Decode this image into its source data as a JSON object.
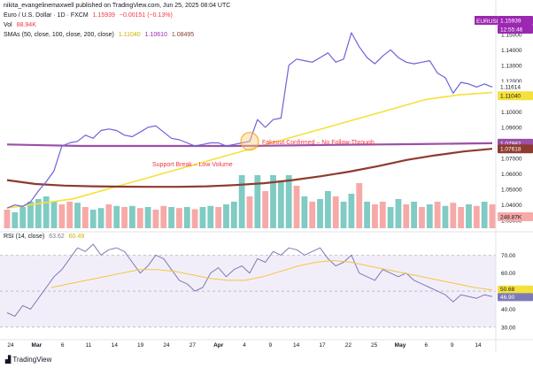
{
  "header": {
    "publisher": "nikita_evangelinemaxwell published on TradingView.com, Jun 25, 2025 08:04 UTC",
    "symbol_line": "Euro / U.S. Dollar · 1D · FXCM",
    "price": "1.15939",
    "change": "−0.00151 (−0.13%)",
    "vol_label": "Vol",
    "vol_value": "88.94K",
    "sma_label": "SMAs (50, close, 100, close, 200, close)",
    "sma50": "1.11040",
    "sma100": "1.10610",
    "sma200": "1.08495",
    "rsi_label": "RSI (14, close)",
    "rsi_value": "63.62",
    "rsi_ma": "60.49"
  },
  "branding": {
    "footer": "TradingView"
  },
  "price_badges": {
    "symbol": "EURUSD",
    "price": "1.15939",
    "countdown": "12:55:46",
    "close_prev": "1.11614",
    "sma50": "1.11040",
    "sma200_a": "1.07982",
    "sma200_b": "1.07618",
    "volume": "248.87K"
  },
  "rsi_badges": [
    "50.68",
    "46.90"
  ],
  "annotations": {
    "fakeout": "Fakeout Confirmed – No Follow-Through",
    "breakdown": "Support Break – Low Volume"
  },
  "chart_data": {
    "type": "line",
    "x_ticks": [
      "24",
      "Mar",
      "6",
      "11",
      "14",
      "19",
      "24",
      "27",
      "Apr",
      "4",
      "9",
      "14",
      "17",
      "22",
      "25",
      "May",
      "6",
      "9",
      "14"
    ],
    "price_axis": [
      "1.15000",
      "1.14000",
      "1.13000",
      "1.12000",
      "1.11000",
      "1.10000",
      "1.09000",
      "1.08000",
      "1.07000",
      "1.06000",
      "1.05000",
      "1.04000",
      "1.03000"
    ],
    "rsi_axis": [
      "70.00",
      "60.00",
      "50.00",
      "40.00",
      "30.00"
    ],
    "price": [
      1.038,
      1.04,
      1.039,
      1.042,
      1.049,
      1.055,
      1.062,
      1.078,
      1.08,
      1.081,
      1.085,
      1.083,
      1.088,
      1.089,
      1.088,
      1.085,
      1.084,
      1.087,
      1.09,
      1.091,
      1.087,
      1.083,
      1.082,
      1.08,
      1.078,
      1.079,
      1.08,
      1.08,
      1.078,
      1.079,
      1.08,
      1.081,
      1.095,
      1.09,
      1.095,
      1.096,
      1.13,
      1.134,
      1.133,
      1.132,
      1.135,
      1.138,
      1.132,
      1.134,
      1.151,
      1.142,
      1.135,
      1.131,
      1.136,
      1.14,
      1.135,
      1.132,
      1.131,
      1.132,
      1.133,
      1.125,
      1.122,
      1.112,
      1.119,
      1.118,
      1.116,
      1.118,
      1.116
    ],
    "sma_series": [
      {
        "name": "SMA 50",
        "color": "#f5e13a",
        "values": [
          1.038,
          1.039,
          1.04,
          1.041,
          1.042,
          1.043,
          1.044,
          1.046,
          1.048,
          1.05,
          1.052,
          1.054,
          1.056,
          1.058,
          1.06,
          1.062,
          1.064,
          1.066,
          1.068,
          1.07,
          1.072,
          1.074,
          1.076,
          1.078,
          1.08,
          1.082,
          1.084,
          1.086,
          1.088,
          1.09,
          1.092,
          1.094,
          1.096,
          1.098,
          1.1,
          1.102,
          1.104,
          1.106,
          1.108,
          1.109,
          1.11,
          1.111,
          1.1115,
          1.112,
          1.1125
        ]
      },
      {
        "name": "SMA 100",
        "color": "#9c4fa8",
        "values": [
          1.079,
          1.0785,
          1.078,
          1.078,
          1.078,
          1.078,
          1.078,
          1.0782,
          1.0785,
          1.0788,
          1.079,
          1.0792,
          1.0795,
          1.0798
        ]
      },
      {
        "name": "SMA 200",
        "color": "#8d3b2f",
        "values": [
          1.056,
          1.0535,
          1.0525,
          1.052,
          1.0518,
          1.0517,
          1.0517,
          1.052,
          1.0528,
          1.054,
          1.056,
          1.0585,
          1.0615,
          1.065,
          1.069,
          1.072,
          1.0745,
          1.0762
        ]
      }
    ],
    "volume": [
      0.35,
      0.3,
      0.4,
      0.5,
      0.55,
      0.6,
      0.5,
      0.45,
      0.5,
      0.48,
      0.4,
      0.35,
      0.38,
      0.45,
      0.42,
      0.4,
      0.42,
      0.38,
      0.4,
      0.35,
      0.42,
      0.4,
      0.38,
      0.4,
      0.36,
      0.4,
      0.42,
      0.4,
      0.45,
      0.5,
      1.0,
      0.6,
      1.0,
      0.7,
      1.0,
      0.9,
      1.0,
      0.8,
      0.6,
      0.5,
      0.55,
      0.7,
      0.6,
      0.5,
      0.65,
      0.85,
      0.5,
      0.45,
      0.5,
      0.4,
      0.55,
      0.45,
      0.5,
      0.4,
      0.45,
      0.5,
      0.42,
      0.48,
      0.4,
      0.45,
      0.42,
      0.5,
      0.45
    ],
    "volume_up": [
      false,
      true,
      true,
      true,
      true,
      true,
      true,
      false,
      false,
      true,
      false,
      true,
      true,
      false,
      true,
      false,
      true,
      false,
      true,
      false,
      false,
      true,
      false,
      true,
      false,
      true,
      true,
      false,
      true,
      true,
      true,
      false,
      true,
      false,
      true,
      true,
      true,
      false,
      true,
      false,
      true,
      true,
      false,
      true,
      true,
      false,
      true,
      false,
      false,
      true,
      true,
      false,
      true,
      false,
      true,
      false,
      true,
      false,
      false,
      true,
      false,
      true,
      false
    ],
    "rsi": [
      38,
      36,
      42,
      40,
      46,
      52,
      58,
      62,
      68,
      74,
      72,
      76,
      70,
      73,
      74,
      72,
      66,
      60,
      64,
      70,
      68,
      62,
      56,
      54,
      50,
      52,
      60,
      63,
      58,
      62,
      64,
      60,
      68,
      66,
      72,
      70,
      74,
      73,
      70,
      72,
      74,
      68,
      64,
      66,
      70,
      60,
      58,
      56,
      62,
      60,
      58,
      60,
      56,
      54,
      52,
      50,
      48,
      44,
      48,
      47,
      46,
      48,
      47
    ],
    "rsi_ma": [
      52,
      54,
      56,
      58,
      60,
      62,
      62,
      61,
      59,
      57,
      56,
      56,
      58,
      61,
      64,
      66,
      67,
      66,
      64,
      62,
      60,
      58,
      56,
      54,
      52,
      50.7
    ]
  }
}
